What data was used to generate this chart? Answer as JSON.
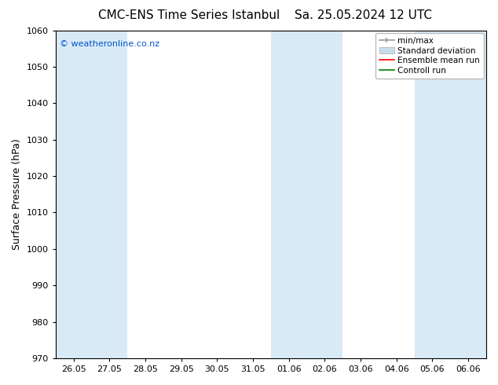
{
  "title_left": "CMC-ENS Time Series Istanbul",
  "title_right": "Sa. 25.05.2024 12 UTC",
  "ylabel": "Surface Pressure (hPa)",
  "ylim": [
    970,
    1060
  ],
  "yticks": [
    970,
    980,
    990,
    1000,
    1010,
    1020,
    1030,
    1040,
    1050,
    1060
  ],
  "xtick_labels": [
    "26.05",
    "27.05",
    "28.05",
    "29.05",
    "30.05",
    "31.05",
    "01.06",
    "02.06",
    "03.06",
    "04.06",
    "05.06",
    "06.06"
  ],
  "watermark": "© weatheronline.co.nz",
  "watermark_color": "#0055cc",
  "bg_color": "#ffffff",
  "shade_color": "#d8eaf5",
  "shade_columns": [
    0,
    1,
    6,
    7,
    10,
    11
  ],
  "legend_labels": [
    "min/max",
    "Standard deviation",
    "Ensemble mean run",
    "Controll run"
  ],
  "legend_colors_handle": [
    "#aaaaaa",
    "#c8dcea",
    "#ff0000",
    "#008000"
  ],
  "title_fontsize": 11,
  "axis_label_fontsize": 9,
  "tick_fontsize": 8,
  "watermark_fontsize": 8,
  "legend_fontsize": 7.5
}
